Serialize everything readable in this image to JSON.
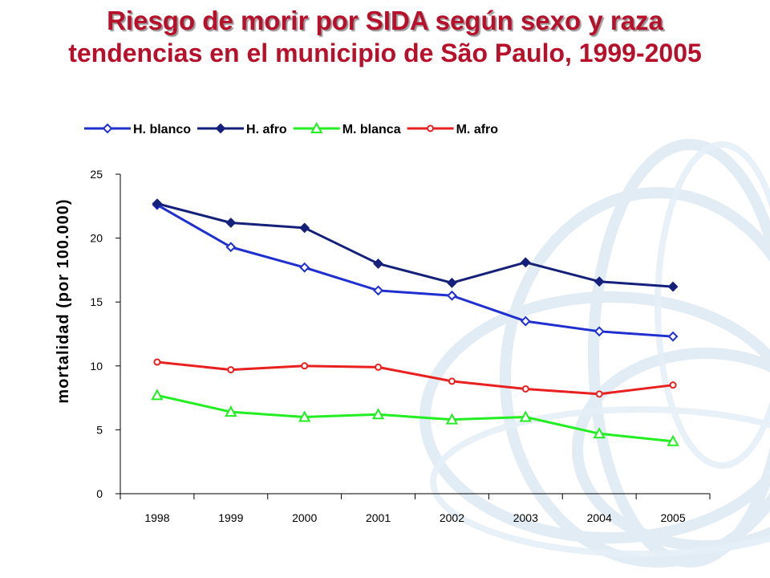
{
  "title": {
    "main": "Riesgo de morir por SIDA según sexo y raza",
    "sub": "tendencias en el municipio de São Paulo, 1999-2005"
  },
  "chart_data": {
    "type": "line",
    "title": "Riesgo de morir por SIDA según sexo y raza",
    "subtitle": "tendencias en el municipio de São Paulo, 1999-2005",
    "xlabel": "",
    "ylabel": "mortalidad (por 100.000)",
    "categories": [
      "1998",
      "1999",
      "2000",
      "2001",
      "2002",
      "2003",
      "2004",
      "2005"
    ],
    "ylim": [
      0,
      25
    ],
    "yticks": [
      0,
      5,
      10,
      15,
      20,
      25
    ],
    "grid": false,
    "legend_position": "top",
    "series": [
      {
        "name": "H. blanco",
        "color": "#1f2fd0",
        "marker": "diamond-open",
        "values": [
          22.6,
          19.3,
          17.7,
          15.9,
          15.5,
          13.5,
          12.7,
          12.3
        ]
      },
      {
        "name": "H. afro",
        "color": "#15207a",
        "marker": "diamond-filled",
        "values": [
          22.7,
          21.2,
          20.8,
          18.0,
          16.5,
          18.1,
          16.6,
          16.2
        ]
      },
      {
        "name": "M. blanca",
        "color": "#22ee22",
        "marker": "triangle-open",
        "values": [
          7.7,
          6.4,
          6.0,
          6.2,
          5.8,
          6.0,
          4.7,
          4.1
        ]
      },
      {
        "name": "M. afro",
        "color": "#e82020",
        "marker": "circle-open",
        "values": [
          10.3,
          9.7,
          10.0,
          9.9,
          8.8,
          8.2,
          7.8,
          8.5
        ]
      }
    ]
  }
}
